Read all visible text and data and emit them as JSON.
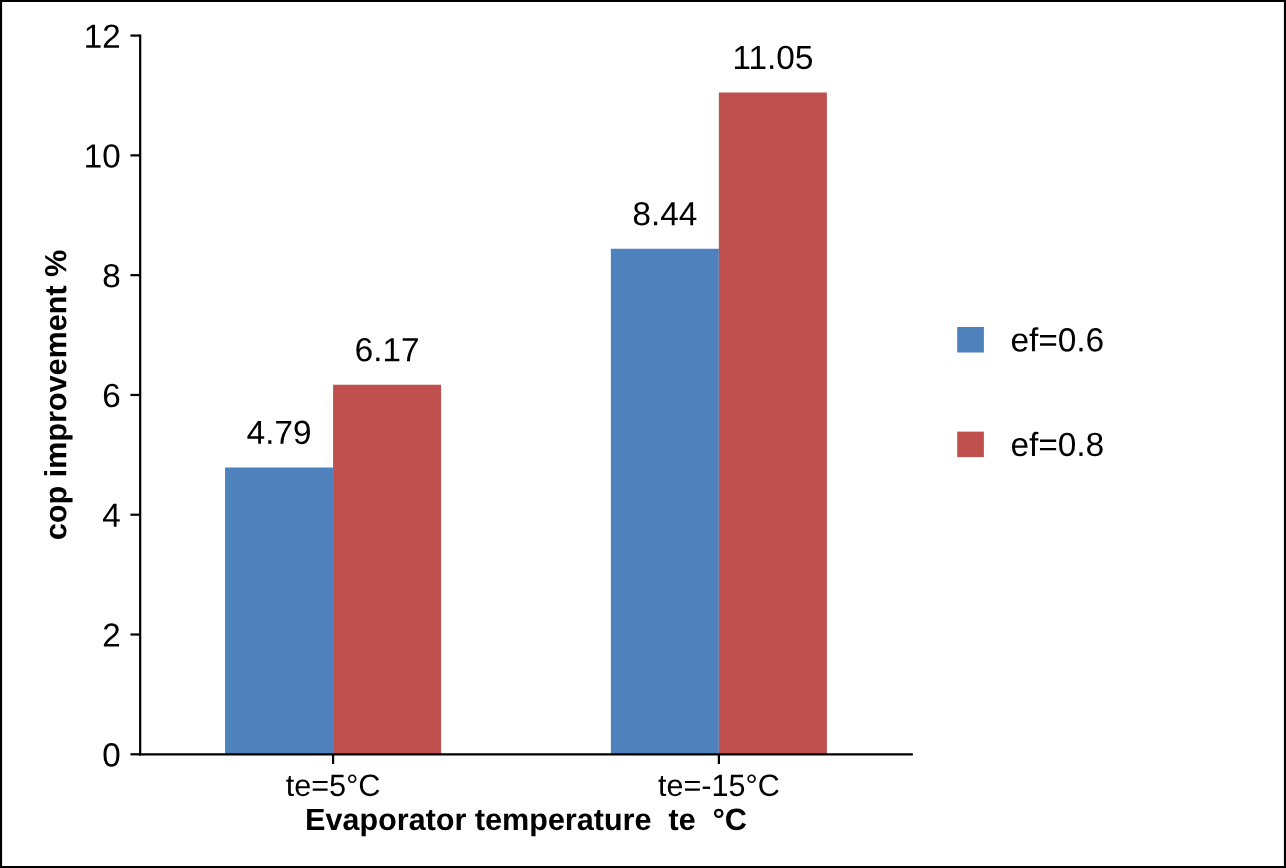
{
  "chart_data": {
    "type": "bar",
    "xlabel": "Evaporator temperature  te  °C",
    "ylabel": "cop improvement %",
    "categories": [
      "te=5°C",
      "te=-15°C"
    ],
    "series": [
      {
        "name": "ef=0.6",
        "color": "#4f81bd",
        "values": [
          4.79,
          8.44
        ]
      },
      {
        "name": "ef=0.8",
        "color": "#c0504d",
        "values": [
          6.17,
          11.05
        ]
      }
    ],
    "ylim": [
      0,
      12
    ],
    "yticks": [
      0,
      2,
      4,
      6,
      8,
      10,
      12
    ],
    "data_labels": true,
    "grid": false,
    "legend": "right"
  }
}
